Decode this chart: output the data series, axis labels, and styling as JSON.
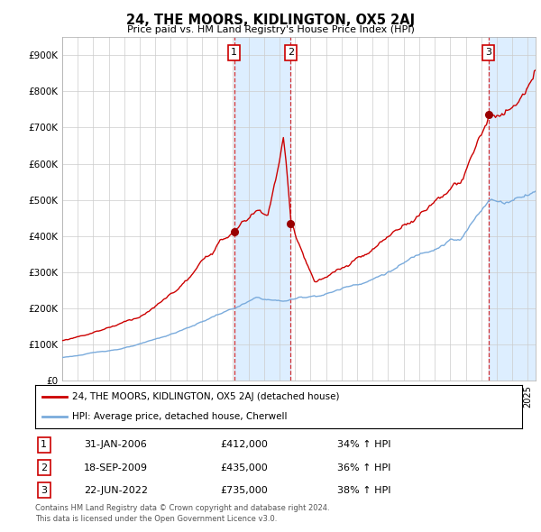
{
  "title": "24, THE MOORS, KIDLINGTON, OX5 2AJ",
  "subtitle": "Price paid vs. HM Land Registry's House Price Index (HPI)",
  "legend_line1": "24, THE MOORS, KIDLINGTON, OX5 2AJ (detached house)",
  "legend_line2": "HPI: Average price, detached house, Cherwell",
  "footnote1": "Contains HM Land Registry data © Crown copyright and database right 2024.",
  "footnote2": "This data is licensed under the Open Government Licence v3.0.",
  "transactions": [
    {
      "num": 1,
      "date": "31-JAN-2006",
      "price": 412000,
      "hpi": "34% ↑ HPI",
      "year": 2006.08
    },
    {
      "num": 2,
      "date": "18-SEP-2009",
      "price": 435000,
      "hpi": "36% ↑ HPI",
      "year": 2009.71
    },
    {
      "num": 3,
      "date": "22-JUN-2022",
      "price": 735000,
      "hpi": "38% ↑ HPI",
      "year": 2022.47
    }
  ],
  "ylim": [
    0,
    950000
  ],
  "yticks": [
    0,
    100000,
    200000,
    300000,
    400000,
    500000,
    600000,
    700000,
    800000,
    900000
  ],
  "xlim_start": 1995.0,
  "xlim_end": 2025.5,
  "hpi_color": "#7aabdc",
  "price_color": "#cc0000",
  "bg_color": "#ffffff",
  "grid_color": "#cccccc",
  "sale_marker_color": "#990000",
  "shading_color": "#ddeeff",
  "hatch_color": "#bbccdd"
}
